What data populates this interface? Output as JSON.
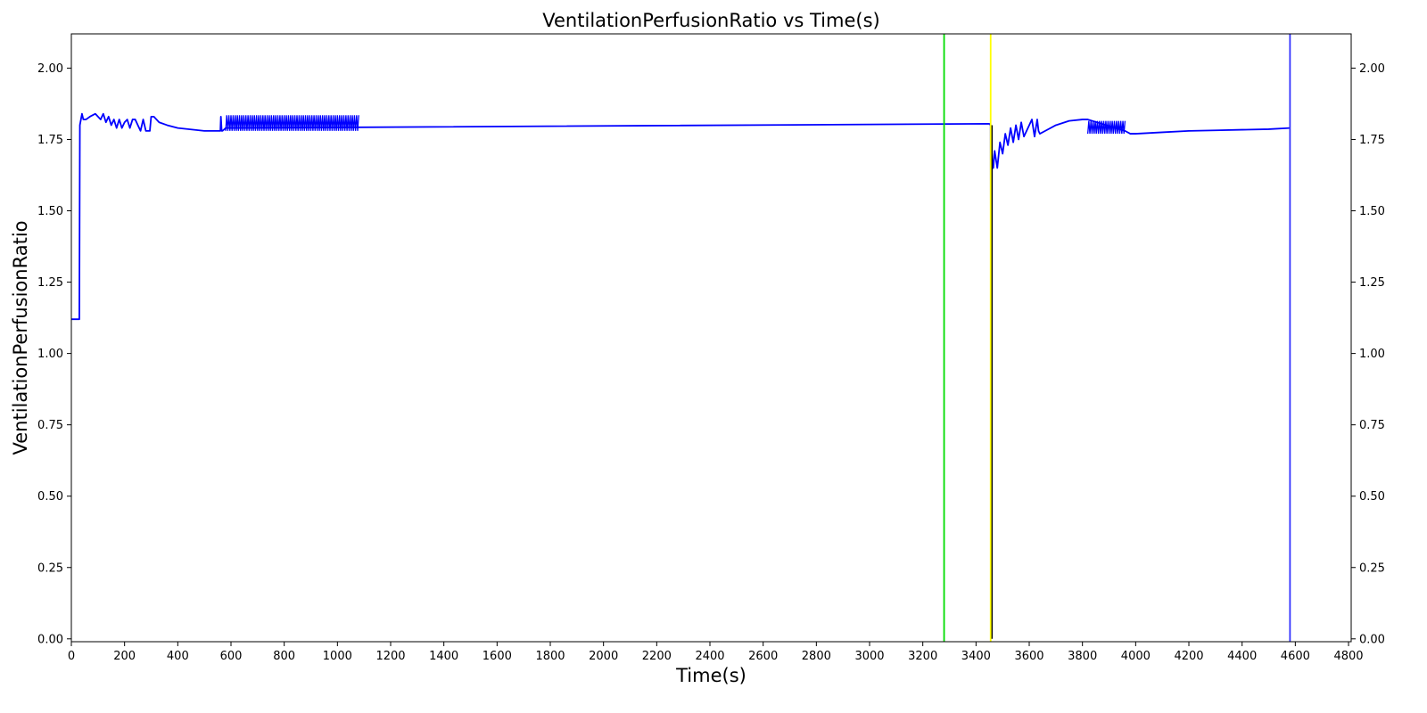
{
  "chart_data": {
    "type": "line",
    "title": "VentilationPerfusionRatio vs Time(s)",
    "xlabel": "Time(s)",
    "ylabel": "VentilationPerfusionRatio",
    "xlim": [
      0,
      4810
    ],
    "ylim": [
      -0.01,
      2.12
    ],
    "x_ticks": [
      0,
      200,
      400,
      600,
      800,
      1000,
      1200,
      1400,
      1600,
      1800,
      2000,
      2200,
      2400,
      2600,
      2800,
      3000,
      3200,
      3400,
      3600,
      3800,
      4000,
      4200,
      4400,
      4600,
      4800
    ],
    "y_ticks": [
      0.0,
      0.25,
      0.5,
      0.75,
      1.0,
      1.25,
      1.5,
      1.75,
      2.0
    ],
    "y_tick_labels": [
      "0.00",
      "0.25",
      "0.50",
      "0.75",
      "1.00",
      "1.25",
      "1.50",
      "1.75",
      "2.00"
    ],
    "grid": false,
    "right_axis_mirror": true,
    "series": [
      {
        "color": "#0000ff",
        "x": [
          0,
          30,
          32,
          40,
          45,
          55,
          70,
          90,
          110,
          120,
          130,
          140,
          150,
          160,
          170,
          180,
          190,
          200,
          210,
          220,
          230,
          240,
          250,
          260,
          270,
          280,
          290,
          295,
          300,
          310,
          330,
          360,
          400,
          450,
          500,
          560,
          562,
          565,
          568,
          580,
          3450,
          3455,
          3458,
          3460,
          3462,
          3465,
          3470,
          3480,
          3490,
          3500,
          3510,
          3520,
          3530,
          3540,
          3550,
          3560,
          3570,
          3580,
          3590,
          3600,
          3610,
          3620,
          3630,
          3635,
          3640,
          3660,
          3700,
          3750,
          3800,
          3820,
          3960,
          3980,
          4000,
          4100,
          4200,
          4300,
          4400,
          4500,
          4580
        ],
        "y": [
          1.12,
          1.12,
          1.8,
          1.84,
          1.82,
          1.82,
          1.83,
          1.84,
          1.82,
          1.84,
          1.81,
          1.83,
          1.8,
          1.82,
          1.79,
          1.82,
          1.79,
          1.81,
          1.82,
          1.79,
          1.82,
          1.82,
          1.8,
          1.78,
          1.82,
          1.78,
          1.78,
          1.78,
          1.83,
          1.83,
          1.81,
          1.8,
          1.79,
          1.785,
          1.78,
          1.78,
          1.83,
          1.78,
          1.78,
          1.79,
          1.805,
          1.8,
          0.01,
          1.7,
          1.65,
          1.65,
          1.71,
          1.65,
          1.74,
          1.7,
          1.77,
          1.73,
          1.79,
          1.74,
          1.8,
          1.75,
          1.81,
          1.76,
          1.78,
          1.8,
          1.82,
          1.76,
          1.82,
          1.78,
          1.77,
          1.78,
          1.8,
          1.815,
          1.82,
          1.82,
          1.78,
          1.77,
          1.77,
          1.775,
          1.78,
          1.782,
          1.784,
          1.786,
          1.79
        ]
      }
    ],
    "noise_bands": [
      {
        "x_start": 580,
        "x_end": 1080,
        "low": 1.78,
        "high": 1.835,
        "color": "#0000ff"
      },
      {
        "x_start": 3820,
        "x_end": 3960,
        "low": 1.77,
        "high": 1.815,
        "color": "#0000ff"
      }
    ],
    "markers": [
      {
        "x": 3460,
        "y0": 0.0,
        "y1": 1.8,
        "color": "#000000"
      }
    ],
    "vlines": [
      {
        "x": 3280,
        "color": "#00dd00"
      },
      {
        "x": 3455,
        "color": "#ffff00"
      },
      {
        "x": 4580,
        "color": "#3333ff"
      }
    ]
  }
}
